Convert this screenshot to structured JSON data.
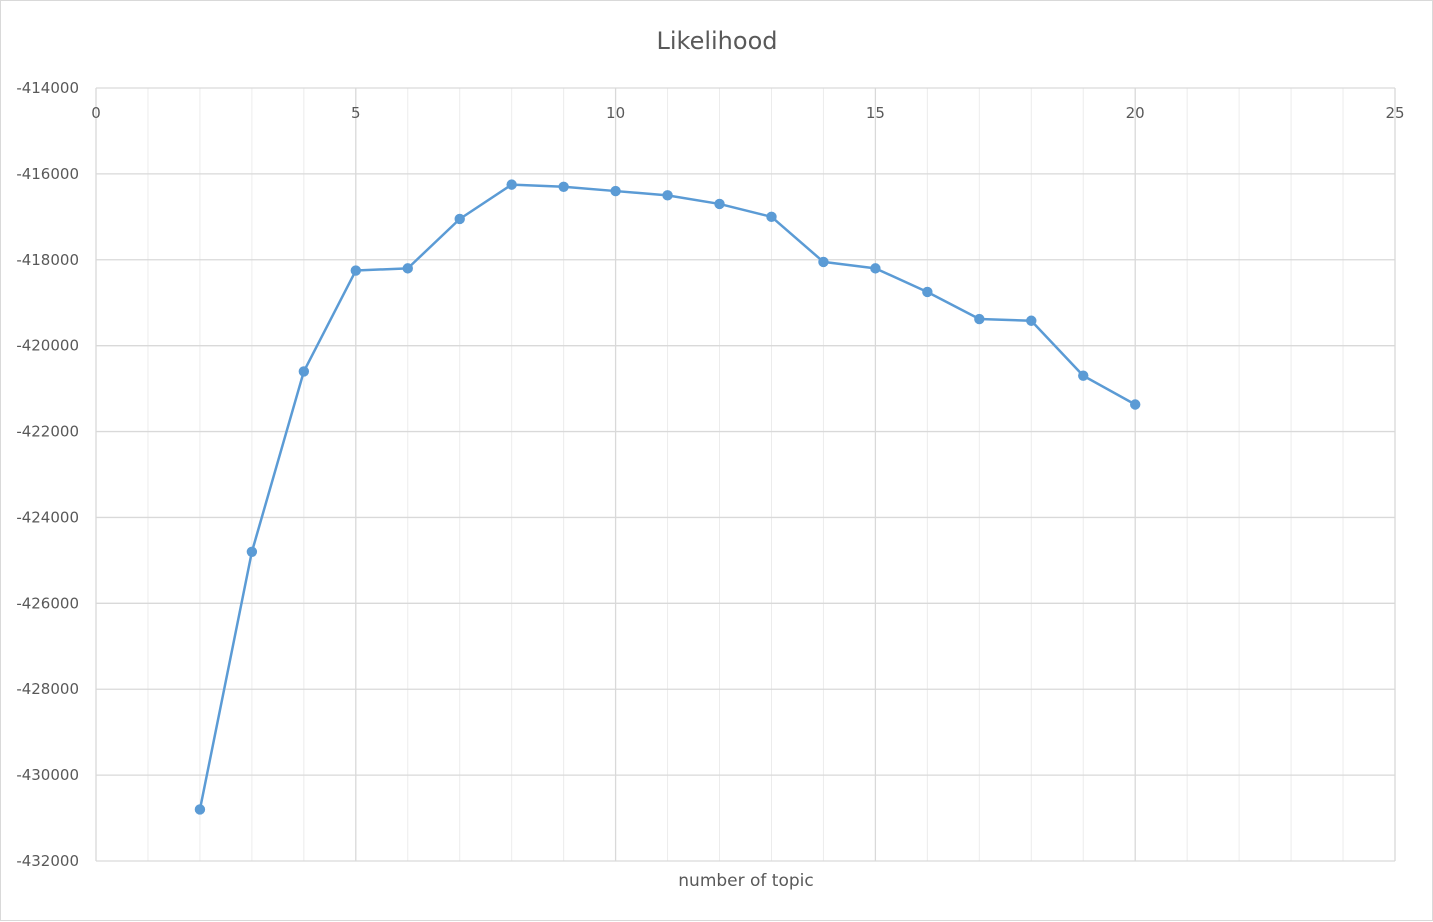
{
  "colors": {
    "series": "#5b9bd5",
    "grid_major": "#d9d9d9",
    "grid_minor": "#ececec",
    "text": "#595959"
  },
  "chart_data": {
    "type": "scatter",
    "title": "Likelihood",
    "xlabel": "number of topic",
    "ylabel": "",
    "xlim": [
      0,
      25
    ],
    "ylim": [
      -432000,
      -414000
    ],
    "x_ticks": [
      0,
      5,
      10,
      15,
      20,
      25
    ],
    "y_ticks": [
      -414000,
      -416000,
      -418000,
      -420000,
      -422000,
      -424000,
      -426000,
      -428000,
      -430000,
      -432000
    ],
    "x_minor_step": 1,
    "x_axis_position": "top",
    "grid": true,
    "legend": "none",
    "series": [
      {
        "x": [
          2,
          3,
          4,
          5,
          6,
          7,
          8,
          9,
          10,
          11,
          12,
          13,
          14,
          15,
          16,
          17,
          18,
          19,
          20
        ],
        "y": [
          -430800,
          -424800,
          -420600,
          -418250,
          -418200,
          -417050,
          -416250,
          -416300,
          -416400,
          -416500,
          -416700,
          -417000,
          -418050,
          -418200,
          -418750,
          -419380,
          -419420,
          -420700,
          -421370
        ],
        "line": true,
        "markers": "circle"
      }
    ]
  }
}
